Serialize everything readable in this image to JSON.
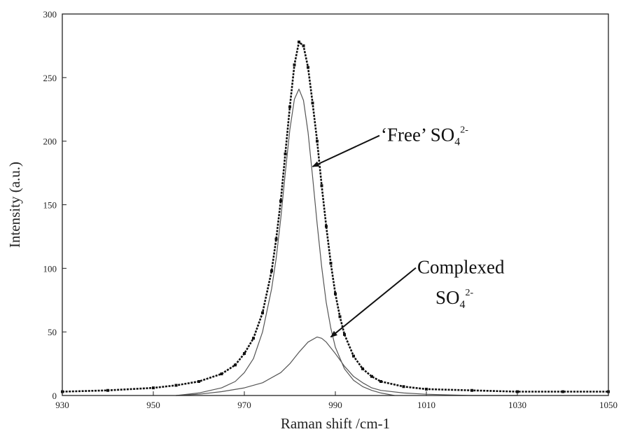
{
  "chart_data": {
    "type": "line",
    "xlabel": "Raman shift /cm-1",
    "ylabel": "Intensity (a.u.)",
    "xlim": [
      930,
      1050
    ],
    "ylim": [
      0,
      300
    ],
    "x_ticks": [
      930,
      950,
      970,
      990,
      1010,
      1030,
      1050
    ],
    "y_ticks": [
      0,
      50,
      100,
      150,
      200,
      250,
      300
    ],
    "grid": false,
    "series": [
      {
        "style": "dotted-markers",
        "x": [
          930,
          940,
          950,
          955,
          960,
          965,
          968,
          970,
          972,
          974,
          976,
          977,
          978,
          979,
          980,
          981,
          982,
          983,
          984,
          985,
          986,
          987,
          988,
          989,
          990,
          991,
          992,
          994,
          996,
          998,
          1000,
          1005,
          1010,
          1020,
          1030,
          1040,
          1050
        ],
        "y": [
          3,
          4,
          6,
          8,
          11,
          17,
          24,
          33,
          45,
          65,
          98,
          123,
          153,
          190,
          227,
          260,
          278,
          275,
          258,
          230,
          200,
          165,
          133,
          104,
          80,
          62,
          48,
          31,
          21,
          15,
          11,
          7,
          5,
          4,
          3,
          3,
          3
        ]
      },
      {
        "style": "thin-line",
        "x": [
          955,
          960,
          965,
          968,
          970,
          972,
          974,
          976,
          977,
          978,
          979,
          980,
          981,
          982,
          983,
          984,
          985,
          986,
          987,
          988,
          989,
          990,
          992,
          994,
          996,
          998,
          1000,
          1003
        ],
        "y": [
          0,
          2,
          6,
          11,
          18,
          29,
          50,
          84,
          108,
          139,
          175,
          209,
          233,
          241,
          232,
          207,
          172,
          135,
          101,
          73,
          53,
          38,
          21,
          12,
          7,
          4,
          2,
          0
        ]
      },
      {
        "style": "thin-line",
        "x": [
          955,
          960,
          965,
          970,
          974,
          978,
          980,
          982,
          984,
          986,
          987,
          988,
          990,
          992,
          994,
          996,
          998,
          1000,
          1005,
          1010,
          1020,
          1030
        ],
        "y": [
          0,
          1,
          3,
          6,
          10,
          18,
          25,
          34,
          42,
          46,
          45,
          42,
          33,
          23,
          15,
          10,
          6,
          4,
          2,
          1,
          0,
          0
        ]
      }
    ],
    "annotations": [
      {
        "text": "‘Free’ SO",
        "sub": "4",
        "sup": "2-",
        "x": 1000,
        "y": 200,
        "arrow_to": [
          985,
          180
        ]
      },
      {
        "text": "Complexed",
        "x": 1008,
        "y": 96,
        "arrow_to": [
          989,
          46
        ]
      },
      {
        "text": "SO",
        "sub": "4",
        "sup": "2-",
        "x": 1012,
        "y": 72
      }
    ]
  }
}
